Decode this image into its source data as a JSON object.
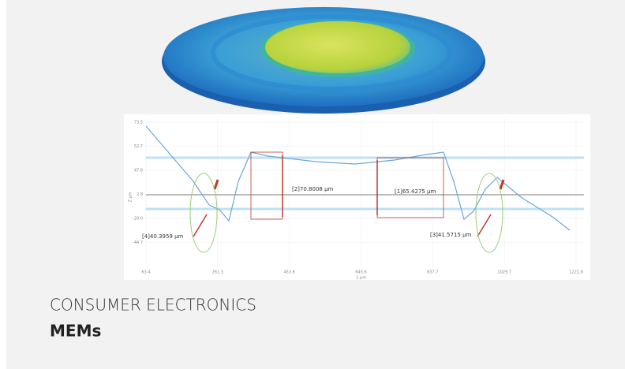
{
  "card": {
    "category": "CONSUMER ELECTRONICS",
    "title": "MEMs"
  },
  "profile": {
    "y_axis_label": "Z µm",
    "x_axis_label": "L µm",
    "y_ticks": [
      "73.5",
      "52.7",
      "47.8",
      "2.8",
      "-20.0",
      "-44.7"
    ],
    "x_ticks": [
      "63.4",
      "261.3",
      "453.6",
      "645.6",
      "837.7",
      "1029.7",
      "1221.8"
    ],
    "measurements": [
      "[2]70.8008 µm",
      "[1]65.4275 µm",
      "[4]40.3959 µm",
      "[3]41.5715 µm"
    ]
  }
}
